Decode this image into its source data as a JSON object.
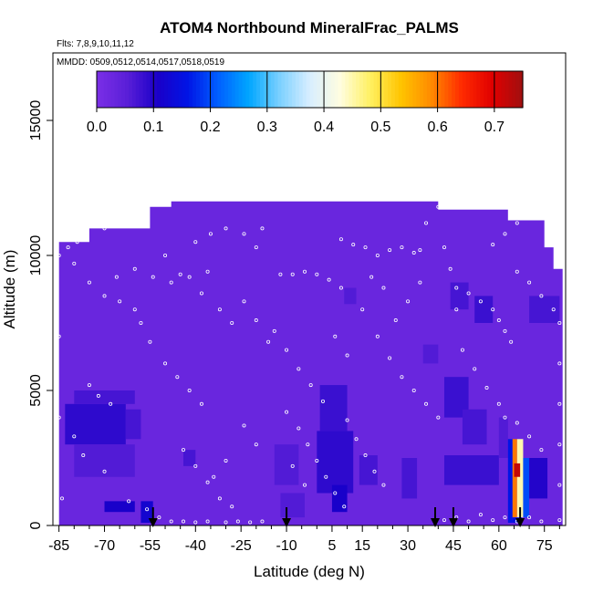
{
  "chart_data": {
    "type": "heatmap",
    "title": "ATOM4 Northbound MineralFrac_PALMS",
    "subtitle_flights": "Flts: 7,8,9,10,11,12",
    "subtitle_dates": "MMDD: 0509,0512,0514,0517,0518,0519",
    "xlabel": "Latitude (deg N)",
    "ylabel": "Altitude (m)",
    "xlim": [
      -87,
      82
    ],
    "ylim": [
      0,
      17500
    ],
    "x_ticks": [
      -85,
      -70,
      -55,
      -40,
      -25,
      -10,
      5,
      15,
      30,
      45,
      60,
      75
    ],
    "x_tick_labels": [
      "-85",
      "-70",
      "-55",
      "-40",
      "-25",
      "-10",
      "5",
      "15",
      "30",
      "45",
      "60",
      "75"
    ],
    "y_ticks": [
      0,
      5000,
      10000,
      15000
    ],
    "y_tick_labels": [
      "0",
      "5000",
      "10000",
      "15000"
    ],
    "colorbar": {
      "range": [
        0,
        0.75
      ],
      "ticks": [
        0.0,
        0.1,
        0.2,
        0.3,
        0.4,
        0.5,
        0.6,
        0.7
      ],
      "tick_labels": [
        "0.0",
        "0.1",
        "0.2",
        "0.3",
        "0.4",
        "0.5",
        "0.6",
        "0.7"
      ],
      "colors": [
        "#7b2fe6",
        "#5a1fd8",
        "#1a00c8",
        "#0015e6",
        "#0060ff",
        "#00a6ff",
        "#7ad0ff",
        "#d8eeff",
        "#fffde0",
        "#fff060",
        "#ffc400",
        "#ff8a00",
        "#ff2a00",
        "#e00000",
        "#a01010"
      ]
    },
    "field": {
      "background_value": 0.03,
      "domain_outline_lat_alt": [
        [
          -85,
          0
        ],
        [
          -85,
          10500
        ],
        [
          -75,
          10500
        ],
        [
          -75,
          11000
        ],
        [
          -55,
          11000
        ],
        [
          -55,
          11800
        ],
        [
          -48,
          11800
        ],
        [
          -48,
          12000
        ],
        [
          40,
          12000
        ],
        [
          40,
          11700
        ],
        [
          63,
          11700
        ],
        [
          63,
          11300
        ],
        [
          75,
          11300
        ],
        [
          75,
          10300
        ],
        [
          78,
          10300
        ],
        [
          78,
          9500
        ],
        [
          81,
          9500
        ],
        [
          81,
          0
        ]
      ],
      "cells": [
        {
          "lat": [
            -83,
            -63
          ],
          "alt": [
            3000,
            4500
          ],
          "value": 0.09
        },
        {
          "lat": [
            -80,
            -60
          ],
          "alt": [
            4500,
            5000
          ],
          "value": 0.07
        },
        {
          "lat": [
            -80,
            -60
          ],
          "alt": [
            1800,
            3000
          ],
          "value": 0.06
        },
        {
          "lat": [
            -63,
            -58
          ],
          "alt": [
            3200,
            4300
          ],
          "value": 0.07
        },
        {
          "lat": [
            -70,
            -60
          ],
          "alt": [
            500,
            900
          ],
          "value": 0.11
        },
        {
          "lat": [
            -58,
            -54
          ],
          "alt": [
            100,
            900
          ],
          "value": 0.12
        },
        {
          "lat": [
            -44,
            -40
          ],
          "alt": [
            2200,
            2800
          ],
          "value": 0.07
        },
        {
          "lat": [
            -14,
            -6
          ],
          "alt": [
            1500,
            3000
          ],
          "value": 0.06
        },
        {
          "lat": [
            -12,
            -4
          ],
          "alt": [
            300,
            1200
          ],
          "value": 0.06
        },
        {
          "lat": [
            1,
            10
          ],
          "alt": [
            3500,
            5200
          ],
          "value": 0.08
        },
        {
          "lat": [
            0,
            12
          ],
          "alt": [
            1200,
            3500
          ],
          "value": 0.09
        },
        {
          "lat": [
            5,
            10
          ],
          "alt": [
            500,
            1500
          ],
          "value": 0.11
        },
        {
          "lat": [
            14,
            20
          ],
          "alt": [
            1500,
            2600
          ],
          "value": 0.07
        },
        {
          "lat": [
            28,
            33
          ],
          "alt": [
            1000,
            2500
          ],
          "value": 0.07
        },
        {
          "lat": [
            35,
            40
          ],
          "alt": [
            6000,
            6700
          ],
          "value": 0.06
        },
        {
          "lat": [
            42,
            50
          ],
          "alt": [
            4000,
            5500
          ],
          "value": 0.08
        },
        {
          "lat": [
            48,
            56
          ],
          "alt": [
            3000,
            4300
          ],
          "value": 0.07
        },
        {
          "lat": [
            42,
            60
          ],
          "alt": [
            1500,
            2600
          ],
          "value": 0.08
        },
        {
          "lat": [
            44,
            50
          ],
          "alt": [
            8000,
            9000
          ],
          "value": 0.07
        },
        {
          "lat": [
            52,
            58
          ],
          "alt": [
            7500,
            8500
          ],
          "value": 0.08
        },
        {
          "lat": [
            60,
            63
          ],
          "alt": [
            2500,
            4000
          ],
          "value": 0.06
        },
        {
          "lat": [
            68,
            76
          ],
          "alt": [
            1000,
            2500
          ],
          "value": 0.1
        },
        {
          "lat": [
            70,
            80
          ],
          "alt": [
            7500,
            8500
          ],
          "value": 0.07
        },
        {
          "lat": [
            9,
            13
          ],
          "alt": [
            8200,
            8800
          ],
          "value": 0.06
        },
        {
          "lat": [
            63,
            64.5
          ],
          "alt": [
            100,
            3200
          ],
          "value": 0.16
        },
        {
          "lat": [
            64.5,
            66
          ],
          "alt": [
            300,
            3200
          ],
          "value": 0.6
        },
        {
          "lat": [
            66,
            68
          ],
          "alt": [
            300,
            3200
          ],
          "value": 0.45
        },
        {
          "lat": [
            68,
            70
          ],
          "alt": [
            300,
            2500
          ],
          "value": 0.2
        },
        {
          "lat": [
            65,
            67
          ],
          "alt": [
            1800,
            2300
          ],
          "value": 0.72
        },
        {
          "lat": [
            64.5,
            67.5
          ],
          "alt": [
            100,
            300
          ],
          "value": 0.15
        }
      ]
    },
    "flight_track_points": [
      [
        -86,
        150
      ],
      [
        -84,
        1000
      ],
      [
        -86,
        2500
      ],
      [
        -85,
        4000
      ],
      [
        -86,
        5500
      ],
      [
        -85,
        7000
      ],
      [
        -86,
        8500
      ],
      [
        -85,
        10000
      ],
      [
        -82,
        10300
      ],
      [
        -79,
        10500
      ],
      [
        -76,
        10600
      ],
      [
        -70,
        11000
      ],
      [
        -66,
        11100
      ],
      [
        -62,
        11200
      ],
      [
        -80,
        9700
      ],
      [
        -75,
        9000
      ],
      [
        -70,
        8500
      ],
      [
        -65,
        8300
      ],
      [
        -60,
        8000
      ],
      [
        -75,
        5200
      ],
      [
        -72,
        4800
      ],
      [
        -68,
        4500
      ],
      [
        -80,
        3300
      ],
      [
        -77,
        2600
      ],
      [
        -70,
        2000
      ],
      [
        -62,
        900
      ],
      [
        -56,
        600
      ],
      [
        -52,
        300
      ],
      [
        -48,
        150
      ],
      [
        -44,
        150
      ],
      [
        -40,
        120
      ],
      [
        -36,
        150
      ],
      [
        -30,
        120
      ],
      [
        -26,
        150
      ],
      [
        -22,
        120
      ],
      [
        -18,
        150
      ],
      [
        -58,
        7500
      ],
      [
        -55,
        6800
      ],
      [
        -50,
        6000
      ],
      [
        -46,
        5500
      ],
      [
        -42,
        5000
      ],
      [
        -38,
        4500
      ],
      [
        -40,
        10500
      ],
      [
        -35,
        10800
      ],
      [
        -30,
        11000
      ],
      [
        -24,
        10800
      ],
      [
        -20,
        10300
      ],
      [
        -18,
        11000
      ],
      [
        -50,
        10000
      ],
      [
        -45,
        9300
      ],
      [
        -38,
        8600
      ],
      [
        -32,
        8000
      ],
      [
        -28,
        7500
      ],
      [
        -12,
        9300
      ],
      [
        -8,
        9300
      ],
      [
        -4,
        9400
      ],
      [
        0,
        9300
      ],
      [
        4,
        9100
      ],
      [
        8,
        8800
      ],
      [
        -14,
        7200
      ],
      [
        -10,
        6500
      ],
      [
        -6,
        5800
      ],
      [
        -2,
        5200
      ],
      [
        2,
        4600
      ],
      [
        -10,
        4200
      ],
      [
        -6,
        3600
      ],
      [
        -3,
        3000
      ],
      [
        0,
        2400
      ],
      [
        3,
        1800
      ],
      [
        6,
        1200
      ],
      [
        9,
        700
      ],
      [
        10,
        3900
      ],
      [
        13,
        3200
      ],
      [
        16,
        2600
      ],
      [
        19,
        2000
      ],
      [
        22,
        1500
      ],
      [
        8,
        10600
      ],
      [
        12,
        10400
      ],
      [
        16,
        10300
      ],
      [
        20,
        10000
      ],
      [
        24,
        10200
      ],
      [
        28,
        10300
      ],
      [
        32,
        10100
      ],
      [
        34,
        10200
      ],
      [
        15,
        8000
      ],
      [
        20,
        7000
      ],
      [
        24,
        6200
      ],
      [
        28,
        5500
      ],
      [
        32,
        5000
      ],
      [
        36,
        4500
      ],
      [
        40,
        4000
      ],
      [
        36,
        11200
      ],
      [
        38,
        12500
      ],
      [
        40,
        11800
      ],
      [
        42,
        10300
      ],
      [
        44,
        9500
      ],
      [
        46,
        8800
      ],
      [
        46,
        8000
      ],
      [
        50,
        8600
      ],
      [
        54,
        8300
      ],
      [
        58,
        8000
      ],
      [
        60,
        7600
      ],
      [
        62,
        7200
      ],
      [
        64,
        6800
      ],
      [
        48,
        6500
      ],
      [
        52,
        5800
      ],
      [
        56,
        5100
      ],
      [
        60,
        4500
      ],
      [
        62,
        4000
      ],
      [
        66,
        3800
      ],
      [
        70,
        3300
      ],
      [
        74,
        2800
      ],
      [
        58,
        10400
      ],
      [
        62,
        10800
      ],
      [
        66,
        11200
      ],
      [
        70,
        11400
      ],
      [
        74,
        11600
      ],
      [
        76,
        10700
      ],
      [
        66,
        9400
      ],
      [
        70,
        9000
      ],
      [
        74,
        8500
      ],
      [
        78,
        8000
      ],
      [
        80,
        7500
      ],
      [
        80,
        6000
      ],
      [
        80,
        4500
      ],
      [
        80,
        3000
      ],
      [
        80,
        1500
      ],
      [
        80,
        200
      ],
      [
        42,
        200
      ],
      [
        46,
        300
      ],
      [
        50,
        150
      ],
      [
        54,
        400
      ],
      [
        58,
        200
      ],
      [
        62,
        300
      ],
      [
        66,
        150
      ],
      [
        70,
        300
      ],
      [
        74,
        150
      ],
      [
        -66,
        9200
      ],
      [
        -60,
        9500
      ],
      [
        -54,
        9200
      ],
      [
        -48,
        9000
      ],
      [
        -42,
        9200
      ],
      [
        -36,
        9400
      ],
      [
        -24,
        8300
      ],
      [
        -20,
        7600
      ],
      [
        -16,
        6800
      ],
      [
        -24,
        3700
      ],
      [
        -20,
        3000
      ],
      [
        -30,
        2400
      ],
      [
        -34,
        1800
      ],
      [
        26,
        7600
      ],
      [
        30,
        8300
      ],
      [
        34,
        9000
      ],
      [
        18,
        9200
      ],
      [
        22,
        8800
      ],
      [
        6,
        7000
      ],
      [
        10,
        6300
      ],
      [
        -44,
        2800
      ],
      [
        -40,
        2200
      ],
      [
        -36,
        1600
      ],
      [
        -32,
        1000
      ],
      [
        -28,
        700
      ],
      [
        -4,
        1500
      ],
      [
        -8,
        2200
      ]
    ],
    "annotation_arrows_lat": [
      -54,
      -10,
      39,
      45,
      67
    ]
  }
}
